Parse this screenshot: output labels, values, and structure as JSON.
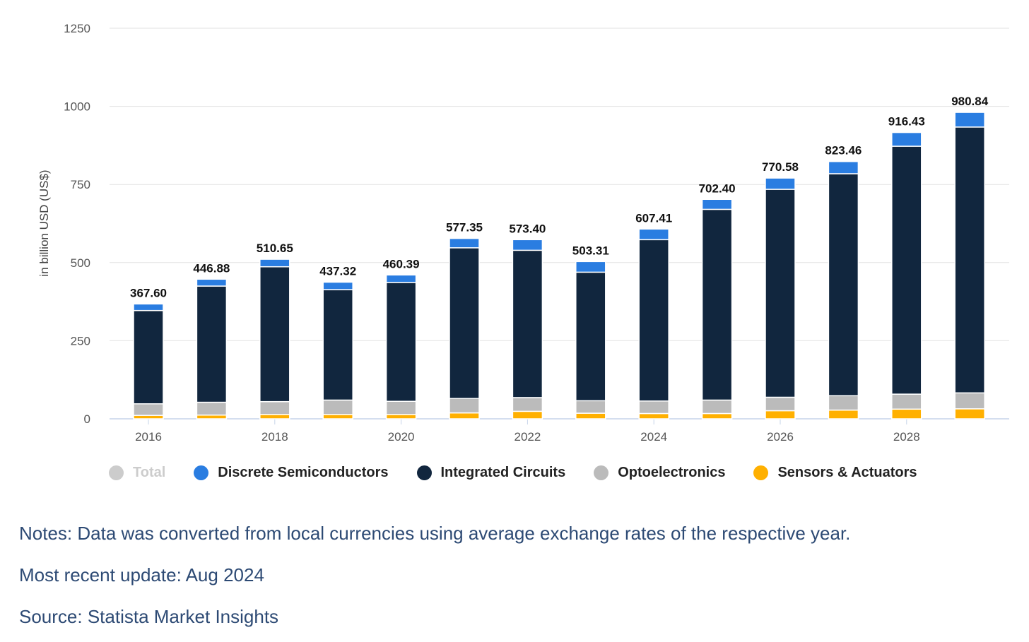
{
  "chart_data": {
    "type": "bar",
    "stacked": true,
    "title": "",
    "xlabel": "",
    "ylabel": "in billion USD (US$)",
    "ylim": [
      0,
      1250
    ],
    "yticks": [
      0,
      250,
      500,
      750,
      1000,
      1250
    ],
    "categories": [
      "2016",
      "2017",
      "2018",
      "2019",
      "2020",
      "2021",
      "2022",
      "2023",
      "2024",
      "2025",
      "2026",
      "2027",
      "2028",
      "2029"
    ],
    "xtick_labels": [
      "2016",
      "2018",
      "2020",
      "2022",
      "2024",
      "2026",
      "2028"
    ],
    "totals": [
      "367.60",
      "446.88",
      "510.65",
      "437.32",
      "460.39",
      "577.35",
      "573.40",
      "503.31",
      "607.41",
      "702.40",
      "770.58",
      "823.46",
      "916.43",
      "980.84"
    ],
    "series": [
      {
        "name": "Sensors & Actuators",
        "color": "#ffb000",
        "values": [
          11,
          12,
          14,
          14,
          14,
          19,
          24,
          18,
          17,
          17,
          26,
          28,
          31,
          32
        ]
      },
      {
        "name": "Optoelectronics",
        "color": "#bbbbbb",
        "values": [
          37,
          41,
          41,
          46,
          42,
          46,
          44,
          40,
          40,
          43,
          43,
          46,
          48,
          51
        ]
      },
      {
        "name": "Integrated Circuits",
        "color": "#11263e",
        "values": [
          298.6,
          371.88,
          431.65,
          353.32,
          380.39,
          482.35,
          471.4,
          411.31,
          516.41,
          610.4,
          665.58,
          710.46,
          793.43,
          850.84
        ]
      },
      {
        "name": "Discrete Semiconductors",
        "color": "#2a7de1",
        "values": [
          21,
          22,
          24,
          24,
          24,
          30,
          34,
          34,
          34,
          32,
          36,
          39,
          44,
          47
        ]
      }
    ],
    "legend": [
      {
        "name": "Total",
        "color": "#cccccc",
        "disabled": true
      },
      {
        "name": "Discrete Semiconductors",
        "color": "#2a7de1"
      },
      {
        "name": "Integrated Circuits",
        "color": "#11263e"
      },
      {
        "name": "Optoelectronics",
        "color": "#bbbbbb"
      },
      {
        "name": "Sensors & Actuators",
        "color": "#ffb000"
      }
    ],
    "legend_position": "bottom-left",
    "grid": true
  },
  "notes": {
    "note": "Notes: Data was converted from local currencies using average exchange rates of the respective year.",
    "update": "Most recent update: Aug 2024",
    "source": "Source: Statista Market Insights"
  }
}
